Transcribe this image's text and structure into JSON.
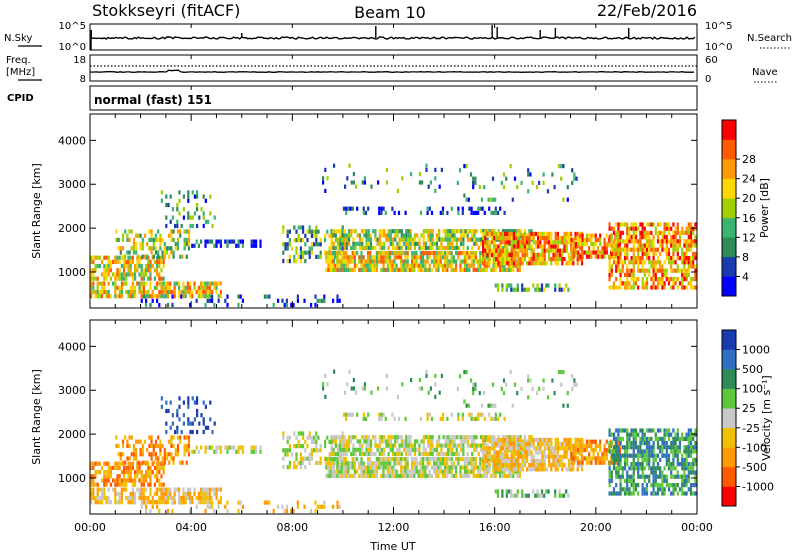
{
  "header": {
    "station": "Stokkseyri (fitACF)",
    "beam": "Beam 10",
    "date": "22/Feb/2016"
  },
  "strip_panels": {
    "noise": {
      "left_label": "N.Sky",
      "right_label": "N.Search",
      "left_ticks": [
        "10^5",
        "10^0"
      ],
      "right_ticks": [
        "10^5",
        "10^0"
      ]
    },
    "freq": {
      "left_label_1": "Freq.",
      "left_label_2": "[MHz]",
      "right_label": "Nave",
      "left_ticks": [
        "18",
        "8"
      ],
      "right_ticks": [
        "60",
        "0"
      ]
    },
    "cpid": {
      "label": "CPID",
      "mode": "normal (fast) 151"
    }
  },
  "colors": {
    "power_scale": [
      "#0000ff",
      "#1a3bb0",
      "#2e8b57",
      "#3cb371",
      "#a0d000",
      "#ffd700",
      "#ff9a00",
      "#ff5a00",
      "#ff0000"
    ],
    "velocity_scale": [
      "#1a3bb0",
      "#2e6fc0",
      "#2e8b57",
      "#5cc83a",
      "#c8c8c8",
      "#f0c000",
      "#ff9a00",
      "#ff5a00",
      "#ff0000"
    ]
  },
  "chart_data": [
    {
      "type": "heatmap",
      "name": "power",
      "xlabel": "",
      "ylabel": "Slant Range [km]",
      "y_ticks": [
        "1000",
        "2000",
        "3000",
        "4000"
      ],
      "ylim": [
        180,
        4600
      ],
      "colorbar": {
        "label": "Power [dB]",
        "ticks": [
          "4",
          "8",
          "12",
          "16",
          "20",
          "24",
          "28"
        ],
        "range": [
          0,
          30
        ]
      }
    },
    {
      "type": "heatmap",
      "name": "velocity",
      "xlabel": "Time UT",
      "ylabel": "Slant Range [km]",
      "x_ticks": [
        "00:00",
        "04:00",
        "08:00",
        "12:00",
        "16:00",
        "20:00",
        "00:00"
      ],
      "y_ticks": [
        "1000",
        "2000",
        "3000",
        "4000"
      ],
      "ylim": [
        180,
        4600
      ],
      "colorbar": {
        "label": "Velocity [m s⁻¹]",
        "ticks": [
          "1000",
          "500",
          "100",
          "25",
          "-25",
          "-100",
          "-500",
          "-1000"
        ]
      }
    }
  ]
}
